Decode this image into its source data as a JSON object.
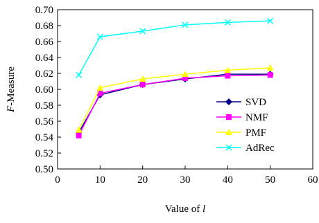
{
  "chart_data": {
    "type": "line",
    "xlabel_prefix": "Value of ",
    "xlabel_var": "l",
    "ylabel_var": "F",
    "ylabel_suffix": "-Measure",
    "xlim": [
      0,
      60
    ],
    "ylim": [
      0.5,
      0.7
    ],
    "xticks": [
      0,
      10,
      20,
      30,
      40,
      50,
      60
    ],
    "yticks": [
      0.5,
      0.52,
      0.54,
      0.56,
      0.58,
      0.6,
      0.62,
      0.64,
      0.66,
      0.68,
      0.7
    ],
    "ytick_labels": [
      "0.50",
      "0.52",
      "0.54",
      "0.56",
      "0.58",
      "0.60",
      "0.62",
      "0.64",
      "0.66",
      "0.68",
      "0.70"
    ],
    "grid": false,
    "legend_position": "bottom-right",
    "x": [
      5,
      10,
      20,
      30,
      40,
      50
    ],
    "series": [
      {
        "name": "SVD",
        "color": "#00008b",
        "marker": "diamond",
        "values": [
          0.546,
          0.593,
          0.606,
          0.613,
          0.619,
          0.619
        ]
      },
      {
        "name": "NMF",
        "color": "#ff00ff",
        "marker": "square",
        "values": [
          0.542,
          0.595,
          0.606,
          0.614,
          0.617,
          0.618
        ]
      },
      {
        "name": "PMF",
        "color": "#ffff00",
        "marker": "triangle",
        "values": [
          0.549,
          0.602,
          0.613,
          0.619,
          0.624,
          0.627
        ]
      },
      {
        "name": "AdRec",
        "color": "#00ffff",
        "marker": "x",
        "values": [
          0.618,
          0.666,
          0.673,
          0.681,
          0.684,
          0.686
        ]
      }
    ]
  }
}
